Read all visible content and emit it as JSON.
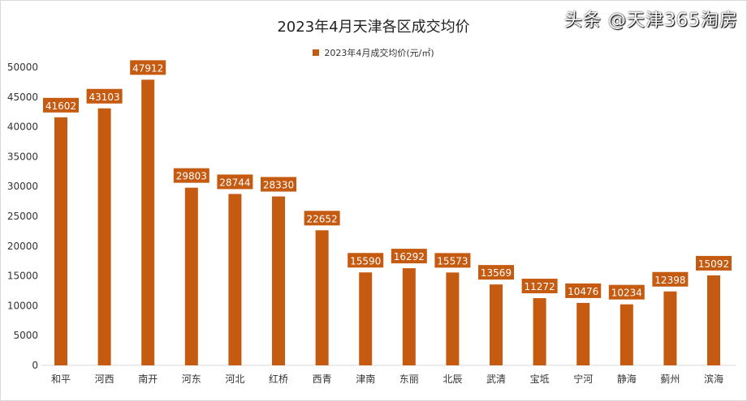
{
  "chart_data": {
    "type": "bar",
    "title": "2023年4月天津各区成交均价",
    "categories": [
      "和平",
      "河西",
      "南开",
      "河东",
      "河北",
      "红桥",
      "西青",
      "津南",
      "东丽",
      "北辰",
      "武清",
      "宝坻",
      "宁河",
      "静海",
      "蓟州",
      "滨海"
    ],
    "series": [
      {
        "name": "2023年4月成交均价(元/㎡)",
        "values": [
          41602,
          43103,
          47912,
          29803,
          28744,
          28330,
          22652,
          15590,
          16292,
          15573,
          13569,
          11272,
          10476,
          10234,
          12398,
          15092
        ]
      }
    ],
    "ylim": [
      0,
      50000
    ],
    "yticks": [
      0,
      5000,
      10000,
      15000,
      20000,
      25000,
      30000,
      35000,
      40000,
      45000,
      50000
    ],
    "grid": false,
    "legend": "top",
    "color": "#c55a11",
    "data_labels": true
  },
  "watermark": "头条 @天津365淘房"
}
